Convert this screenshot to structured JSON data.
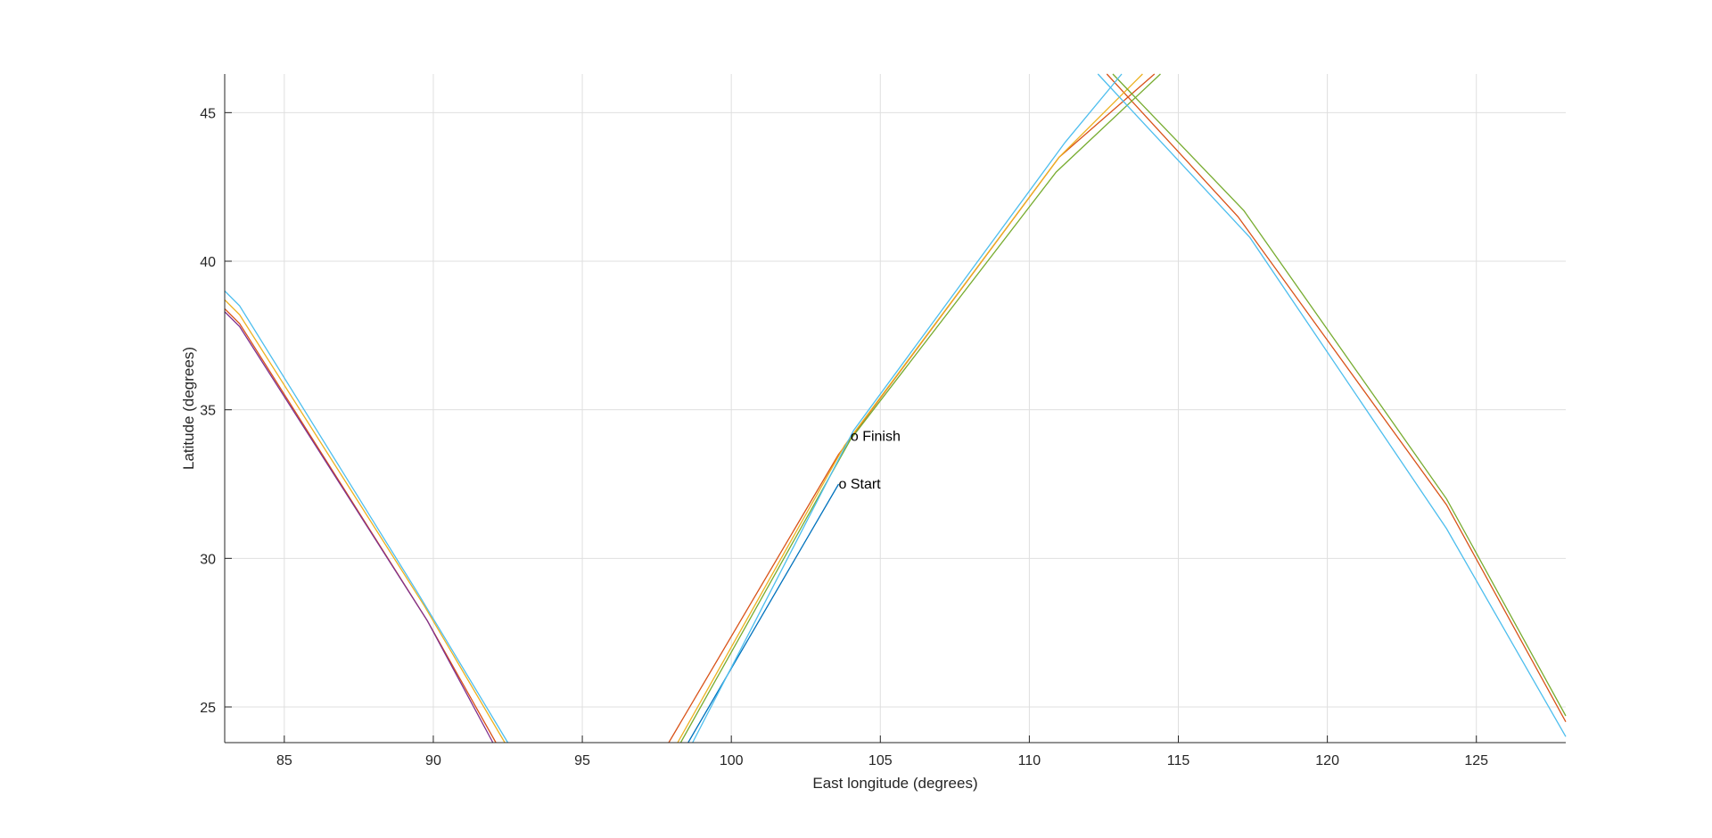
{
  "chart_data": {
    "type": "line",
    "title": "",
    "xlabel": "East longitude (degrees)",
    "ylabel": "Latitude (degrees)",
    "xlim": [
      83,
      128
    ],
    "ylim": [
      23.8,
      46.3
    ],
    "xticks": [
      85,
      90,
      95,
      100,
      105,
      110,
      115,
      120,
      125
    ],
    "yticks": [
      25,
      30,
      35,
      40,
      45
    ],
    "grid": true,
    "legend": "none",
    "series": [
      {
        "color": "#0072BD",
        "segments": [
          [
            [
              98.55,
              23.8
            ],
            [
              103.6,
              32.5
            ]
          ]
        ]
      },
      {
        "color": "#D95319",
        "segments": [
          [
            [
              83.0,
              38.4
            ],
            [
              83.5,
              37.9
            ],
            [
              89.8,
              27.9
            ],
            [
              92.1,
              23.8
            ]
          ],
          [
            [
              97.9,
              23.8
            ],
            [
              103.6,
              33.5
            ],
            [
              111.0,
              43.5
            ],
            [
              114.2,
              46.3
            ]
          ],
          [
            [
              112.6,
              46.3
            ],
            [
              117.0,
              41.5
            ],
            [
              124.0,
              31.8
            ],
            [
              128.0,
              24.5
            ]
          ]
        ]
      },
      {
        "color": "#EDB120",
        "segments": [
          [
            [
              83.0,
              38.7
            ],
            [
              83.5,
              38.2
            ],
            [
              89.7,
              28.4
            ],
            [
              92.4,
              23.8
            ]
          ],
          [
            [
              98.2,
              23.8
            ],
            [
              103.8,
              33.8
            ],
            [
              111.0,
              43.5
            ],
            [
              113.8,
              46.3
            ]
          ]
        ]
      },
      {
        "color": "#7E2F8E",
        "segments": [
          [
            [
              83.0,
              38.3
            ],
            [
              83.5,
              37.8
            ],
            [
              89.8,
              27.9
            ],
            [
              92.0,
              23.8
            ]
          ]
        ]
      },
      {
        "color": "#77AC30",
        "segments": [
          [
            [
              98.3,
              23.8
            ],
            [
              104.0,
              34.0
            ],
            [
              110.9,
              43.0
            ],
            [
              114.4,
              46.3
            ]
          ],
          [
            [
              112.8,
              46.3
            ],
            [
              117.2,
              41.7
            ],
            [
              124.0,
              32.0
            ],
            [
              128.0,
              24.7
            ]
          ]
        ]
      },
      {
        "color": "#4DBEEE",
        "segments": [
          [
            [
              83.0,
              39.0
            ],
            [
              83.5,
              38.5
            ],
            [
              89.5,
              28.8
            ],
            [
              92.5,
              23.8
            ]
          ],
          [
            [
              98.7,
              23.8
            ],
            [
              104.1,
              34.3
            ],
            [
              111.2,
              44.0
            ],
            [
              113.1,
              46.3
            ]
          ],
          [
            [
              112.3,
              46.3
            ],
            [
              117.4,
              40.8
            ],
            [
              124.0,
              31.0
            ],
            [
              128.0,
              24.0
            ]
          ]
        ]
      }
    ],
    "annotations": [
      {
        "text": "o Finish",
        "x": 104.0,
        "y": 34.1
      },
      {
        "text": "o Start",
        "x": 103.6,
        "y": 32.5
      }
    ]
  }
}
